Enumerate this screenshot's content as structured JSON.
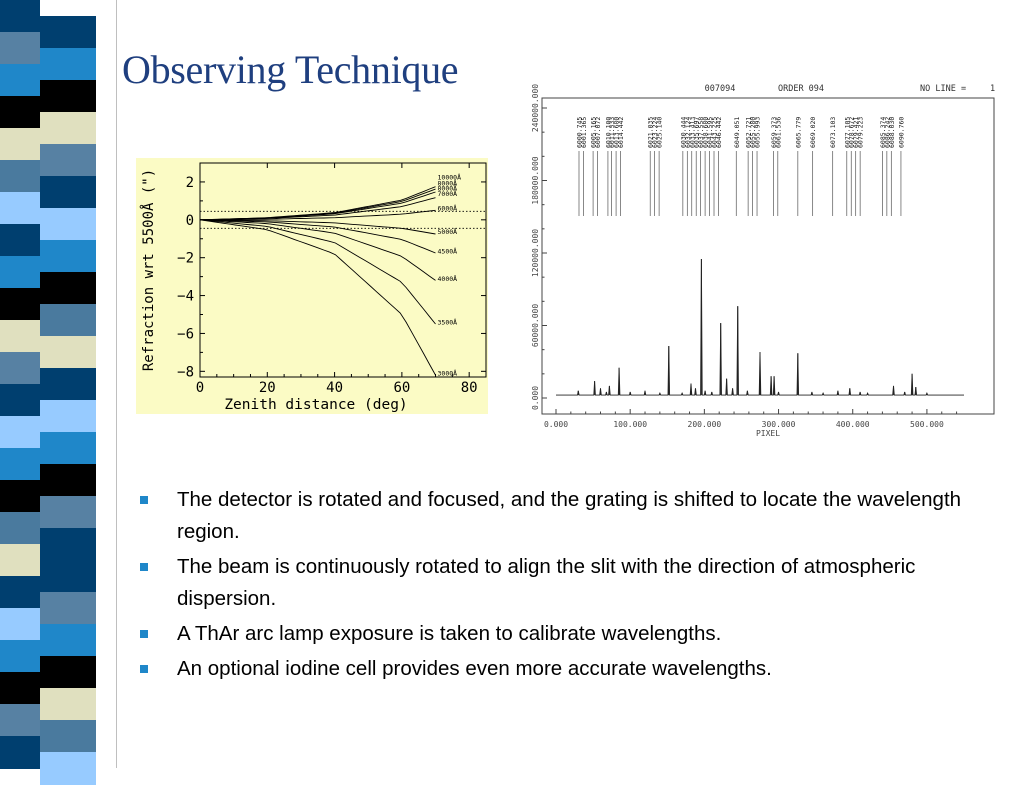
{
  "slide": {
    "title": "Observing Technique",
    "bullets": [
      "The detector is rotated and focused, and the grating is shifted to locate the wavelength region.",
      "The beam is continuously rotated to align the slit with the direction of atmospheric dispersion.",
      "A ThAr arc lamp exposure is taken to calibrate wavelengths.",
      "An optional iodine cell provides even more accurate wavelengths."
    ]
  },
  "colors": {
    "title": "#1f3f7f",
    "bullet": "#1f87c9",
    "refraction_chart_background": "#fbfbc5",
    "stripe_palette": [
      "#1f87c9",
      "#4a7a9e",
      "#003f6f",
      "#000000",
      "#e0e0bf",
      "#97cbff",
      "#5781a3",
      "#1f5f8f"
    ]
  },
  "decoration": {
    "stripe_colors": [
      "#003f6f",
      "#5781a3",
      "#1f87c9",
      "#000000",
      "#e0e0bf",
      "#4a7a9e",
      "#97cbff",
      "#003f6f",
      "#1f87c9",
      "#000000",
      "#e0e0bf",
      "#5781a3",
      "#003f6f",
      "#97cbff",
      "#1f87c9",
      "#000000",
      "#4a7a9e",
      "#e0e0bf",
      "#003f6f",
      "#97cbff",
      "#1f87c9",
      "#000000",
      "#5781a3",
      "#003f6f"
    ]
  },
  "chart_data": [
    {
      "type": "line",
      "title": "",
      "xlabel": "Zenith distance (deg)",
      "ylabel": "Refraction wrt 5500Å (\")",
      "xlim": [
        0,
        85
      ],
      "ylim": [
        -8.3,
        3.0
      ],
      "xticks": [
        0,
        20,
        40,
        60,
        80
      ],
      "yticks": [
        2,
        0,
        -2,
        -4,
        -6,
        -8
      ],
      "xtick_labels": [
        "0",
        "20",
        "40",
        "60",
        "80"
      ],
      "ytick_labels": [
        "2",
        "0",
        "−2",
        "−4",
        "−6",
        "−8"
      ],
      "reference_levels": [
        0.45,
        -0.45
      ],
      "grid": false,
      "legend": "inline labels at right end of curves",
      "series": [
        {
          "name": "10000Å",
          "x": [
            0,
            20,
            40,
            60,
            70
          ],
          "y": [
            0,
            0.11,
            0.38,
            1.04,
            1.75
          ],
          "label_y": 2.25
        },
        {
          "name": "8000Å",
          "x": [
            0,
            20,
            40,
            60,
            70
          ],
          "y": [
            0,
            0.1,
            0.35,
            0.97,
            1.62
          ],
          "label_y": 1.95
        },
        {
          "name": "8000Å",
          "x": [
            0,
            20,
            40,
            60,
            70
          ],
          "y": [
            0,
            0.09,
            0.32,
            0.88,
            1.47
          ],
          "label_y": 1.68
        },
        {
          "name": "7000Å",
          "x": [
            0,
            20,
            40,
            60,
            70
          ],
          "y": [
            0,
            0.07,
            0.25,
            0.7,
            1.17
          ],
          "label_y": 1.4
        },
        {
          "name": "6000Å",
          "x": [
            0,
            20,
            40,
            60,
            70
          ],
          "y": [
            0,
            0.03,
            0.11,
            0.3,
            0.5
          ],
          "label_y": 0.62
        },
        {
          "name": "5000Å",
          "x": [
            0,
            20,
            40,
            60,
            70
          ],
          "y": [
            0,
            -0.05,
            -0.16,
            -0.45,
            -0.75
          ],
          "label_y": -0.62
        },
        {
          "name": "4500Å",
          "x": [
            0,
            20,
            40,
            60,
            70
          ],
          "y": [
            0,
            -0.11,
            -0.38,
            -1.04,
            -1.75
          ],
          "label_y": -1.65
        },
        {
          "name": "4000Å",
          "x": [
            0,
            20,
            40,
            60,
            70
          ],
          "y": [
            0,
            -0.2,
            -0.7,
            -1.93,
            -3.2
          ],
          "label_y": -3.1
        },
        {
          "name": "3500Å",
          "x": [
            0,
            20,
            40,
            60,
            70
          ],
          "y": [
            0,
            -0.35,
            -1.2,
            -3.3,
            -5.5
          ],
          "label_y": -5.4
        },
        {
          "name": "3000Å",
          "x": [
            0,
            20,
            40,
            60,
            70
          ],
          "y": [
            0,
            -0.52,
            -1.8,
            -5.0,
            -8.2
          ],
          "label_y": -8.1
        }
      ]
    },
    {
      "type": "line",
      "title": "ORDER 094",
      "header_id": "007094",
      "header_right": "NO LINE =",
      "header_right_value": "1",
      "xlabel": "PIXEL",
      "ylabel": "",
      "xlim": [
        0,
        550
      ],
      "ylim": [
        0,
        240000
      ],
      "xticks": [
        0,
        100,
        200,
        300,
        400,
        500
      ],
      "yticks": [
        0,
        60000,
        120000,
        180000,
        240000
      ],
      "xtick_labels": [
        "0.000",
        "100.000",
        "200.000",
        "300.000",
        "400.000",
        "500.000"
      ],
      "ytick_labels": [
        "0.000",
        "60000.000",
        "120000.000",
        "180000.000",
        "240000.000"
      ],
      "grid": false,
      "baseline": 2400,
      "peaks": [
        {
          "x": 30,
          "y": 6000
        },
        {
          "x": 52,
          "y": 14000
        },
        {
          "x": 60,
          "y": 8000
        },
        {
          "x": 68,
          "y": 5000
        },
        {
          "x": 72,
          "y": 10000
        },
        {
          "x": 85,
          "y": 25000
        },
        {
          "x": 100,
          "y": 5000
        },
        {
          "x": 120,
          "y": 6000
        },
        {
          "x": 140,
          "y": 4000
        },
        {
          "x": 152,
          "y": 43000
        },
        {
          "x": 170,
          "y": 4000
        },
        {
          "x": 182,
          "y": 12000
        },
        {
          "x": 188,
          "y": 8000
        },
        {
          "x": 196,
          "y": 115000
        },
        {
          "x": 201,
          "y": 6000
        },
        {
          "x": 210,
          "y": 5000
        },
        {
          "x": 222,
          "y": 62000
        },
        {
          "x": 230,
          "y": 16000
        },
        {
          "x": 238,
          "y": 8000
        },
        {
          "x": 245,
          "y": 76000
        },
        {
          "x": 258,
          "y": 6000
        },
        {
          "x": 275,
          "y": 38000
        },
        {
          "x": 290,
          "y": 18000
        },
        {
          "x": 294,
          "y": 18000
        },
        {
          "x": 300,
          "y": 5000
        },
        {
          "x": 326,
          "y": 37000
        },
        {
          "x": 345,
          "y": 5000
        },
        {
          "x": 360,
          "y": 4000
        },
        {
          "x": 380,
          "y": 6000
        },
        {
          "x": 396,
          "y": 8000
        },
        {
          "x": 410,
          "y": 5000
        },
        {
          "x": 420,
          "y": 4000
        },
        {
          "x": 455,
          "y": 10000
        },
        {
          "x": 470,
          "y": 5000
        },
        {
          "x": 480,
          "y": 20000
        },
        {
          "x": 485,
          "y": 9000
        },
        {
          "x": 500,
          "y": 4000
        }
      ],
      "line_ids": [
        {
          "label": "6000.745",
          "x": 31
        },
        {
          "label": "6001.365",
          "x": 37
        },
        {
          "label": "6005.165",
          "x": 50
        },
        {
          "label": "6007.072",
          "x": 56
        },
        {
          "label": "6010.100",
          "x": 70
        },
        {
          "label": "6011.533",
          "x": 75
        },
        {
          "label": "6013.680",
          "x": 81
        },
        {
          "label": "6014.442",
          "x": 87
        },
        {
          "label": "6021.035",
          "x": 127
        },
        {
          "label": "6023.224",
          "x": 133
        },
        {
          "label": "6025.140",
          "x": 139
        },
        {
          "label": "6030.444",
          "x": 171
        },
        {
          "label": "6032.124",
          "x": 177
        },
        {
          "label": "6033.413",
          "x": 183
        },
        {
          "label": "6035.697",
          "x": 189
        },
        {
          "label": "6037.558",
          "x": 195
        },
        {
          "label": "6038.680",
          "x": 201
        },
        {
          "label": "6041.595",
          "x": 207
        },
        {
          "label": "6043.225",
          "x": 213
        },
        {
          "label": "6046.442",
          "x": 219
        },
        {
          "label": "6049.051",
          "x": 243
        },
        {
          "label": "6052.721",
          "x": 259
        },
        {
          "label": "6055.280",
          "x": 265
        },
        {
          "label": "6055.993",
          "x": 271
        },
        {
          "label": "6059.373",
          "x": 293
        },
        {
          "label": "6061.536",
          "x": 299
        },
        {
          "label": "6065.779",
          "x": 326
        },
        {
          "label": "6069.020",
          "x": 346
        },
        {
          "label": "6073.103",
          "x": 373
        },
        {
          "label": "6077.105",
          "x": 392
        },
        {
          "label": "6078.672",
          "x": 398
        },
        {
          "label": "6079.421",
          "x": 404
        },
        {
          "label": "6079.223",
          "x": 410
        },
        {
          "label": "6085.374",
          "x": 440
        },
        {
          "label": "6086.242",
          "x": 446
        },
        {
          "label": "6088.030",
          "x": 452
        },
        {
          "label": "6090.760",
          "x": 465
        }
      ]
    }
  ]
}
